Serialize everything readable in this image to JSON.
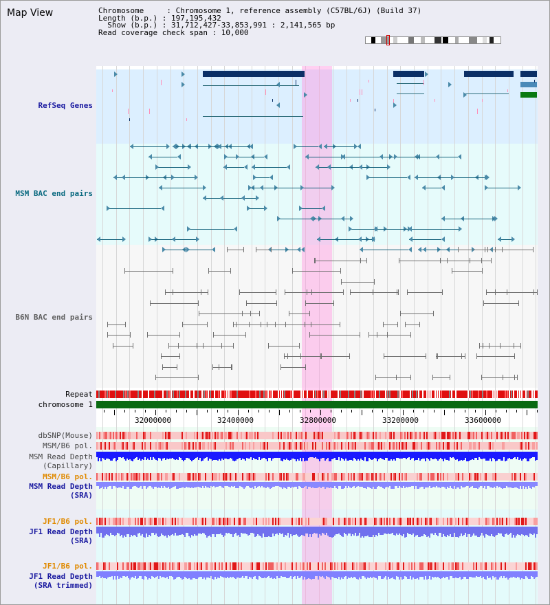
{
  "app": {
    "title": "Map View"
  },
  "info": {
    "line1": "Chromosome     : Chromosome 1, reference assembly (C57BL/6J) (Build 37)",
    "line2": "Length (b.p.) : 197,195,432",
    "line3": "  Show (b.p.) : 31,712,427-33,853,991 : 2,141,565 bp",
    "line4": "Read coverage check span : 10,000"
  },
  "tracks": {
    "refseq": "RefSeq Genes",
    "msm_bac": "MSM BAC end pairs",
    "b6n_bac": "B6N BAC end pairs",
    "repeat": "Repeat",
    "chromosome": "chromosome 1",
    "dbsnp": "dbSNP(Mouse)",
    "msm_b6_pol": "MSM/B6 pol.",
    "msm_read_depth_cap_1": "MSM Read Depth",
    "msm_read_depth_cap_2": "(Capillary)",
    "msm_b6_pol_2": "MSM/B6 pol.",
    "msm_read_depth_sra_1": "MSM Read Depth",
    "msm_read_depth_sra_2": "(SRA)",
    "jf1_b6_pol": "JF1/B6 pol.",
    "jf1_read_depth_sra_1": "JF1 Read Depth",
    "jf1_read_depth_sra_2": "(SRA)",
    "jf1_b6_pol_2": "JF1/B6 pol.",
    "jf1_read_depth_trim_1": "JF1 Read Depth",
    "jf1_read_depth_trim_2": "(SRA trimmed)"
  },
  "axis": {
    "labels": [
      "32000000",
      "32400000",
      "32800000",
      "33200000",
      "33600000"
    ],
    "values": [
      32000000,
      32400000,
      32800000,
      33200000,
      33600000
    ],
    "range_start": 31712427,
    "range_end": 33853991,
    "highlight_start": 32710000,
    "highlight_end": 32860000
  },
  "colors": {
    "refseq_bg": "#dcefff",
    "msm_bg": "#e6fbfb",
    "b6n_bg": "#f7f7f7",
    "refseq_gene": "#0b2f66",
    "refseq_line": "#2a6a78",
    "msm_feature": "#0f5e78",
    "b6n_feature": "#6f6f6f",
    "chromosome": "#0a6a12",
    "highlight": "#ff96e1",
    "label_navy": "#00008b",
    "label_teal": "#006b80",
    "label_orange": "#e08a00",
    "label_gray": "#444444",
    "depth_blue": "#1a1aff",
    "depth_light": "#8888ff"
  }
}
